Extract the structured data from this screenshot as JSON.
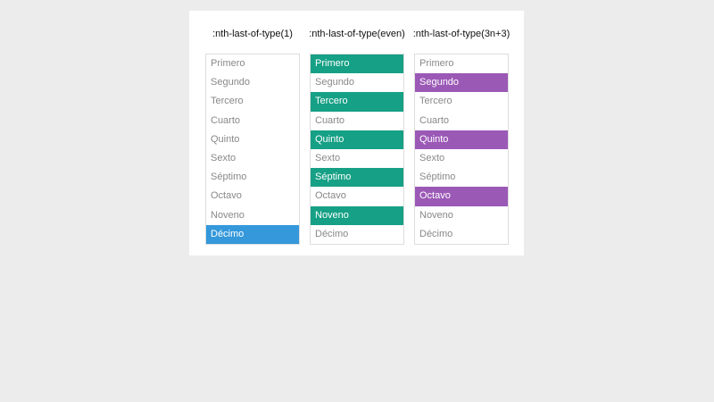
{
  "items": [
    "Primero",
    "Segundo",
    "Tercero",
    "Cuarto",
    "Quinto",
    "Sexto",
    "Séptimo",
    "Octavo",
    "Noveno",
    "Décimo"
  ],
  "columns": [
    {
      "title": ":nth-last-of-type(1)",
      "color": "#3498db",
      "highlighted": [
        10
      ]
    },
    {
      "title": ":nth-last-of-type(even)",
      "color": "#16a085",
      "highlighted": [
        1,
        3,
        5,
        7,
        9
      ]
    },
    {
      "title": ":nth-last-of-type(3n+3)",
      "color": "#9b59b6",
      "highlighted": [
        2,
        5,
        8
      ]
    }
  ]
}
